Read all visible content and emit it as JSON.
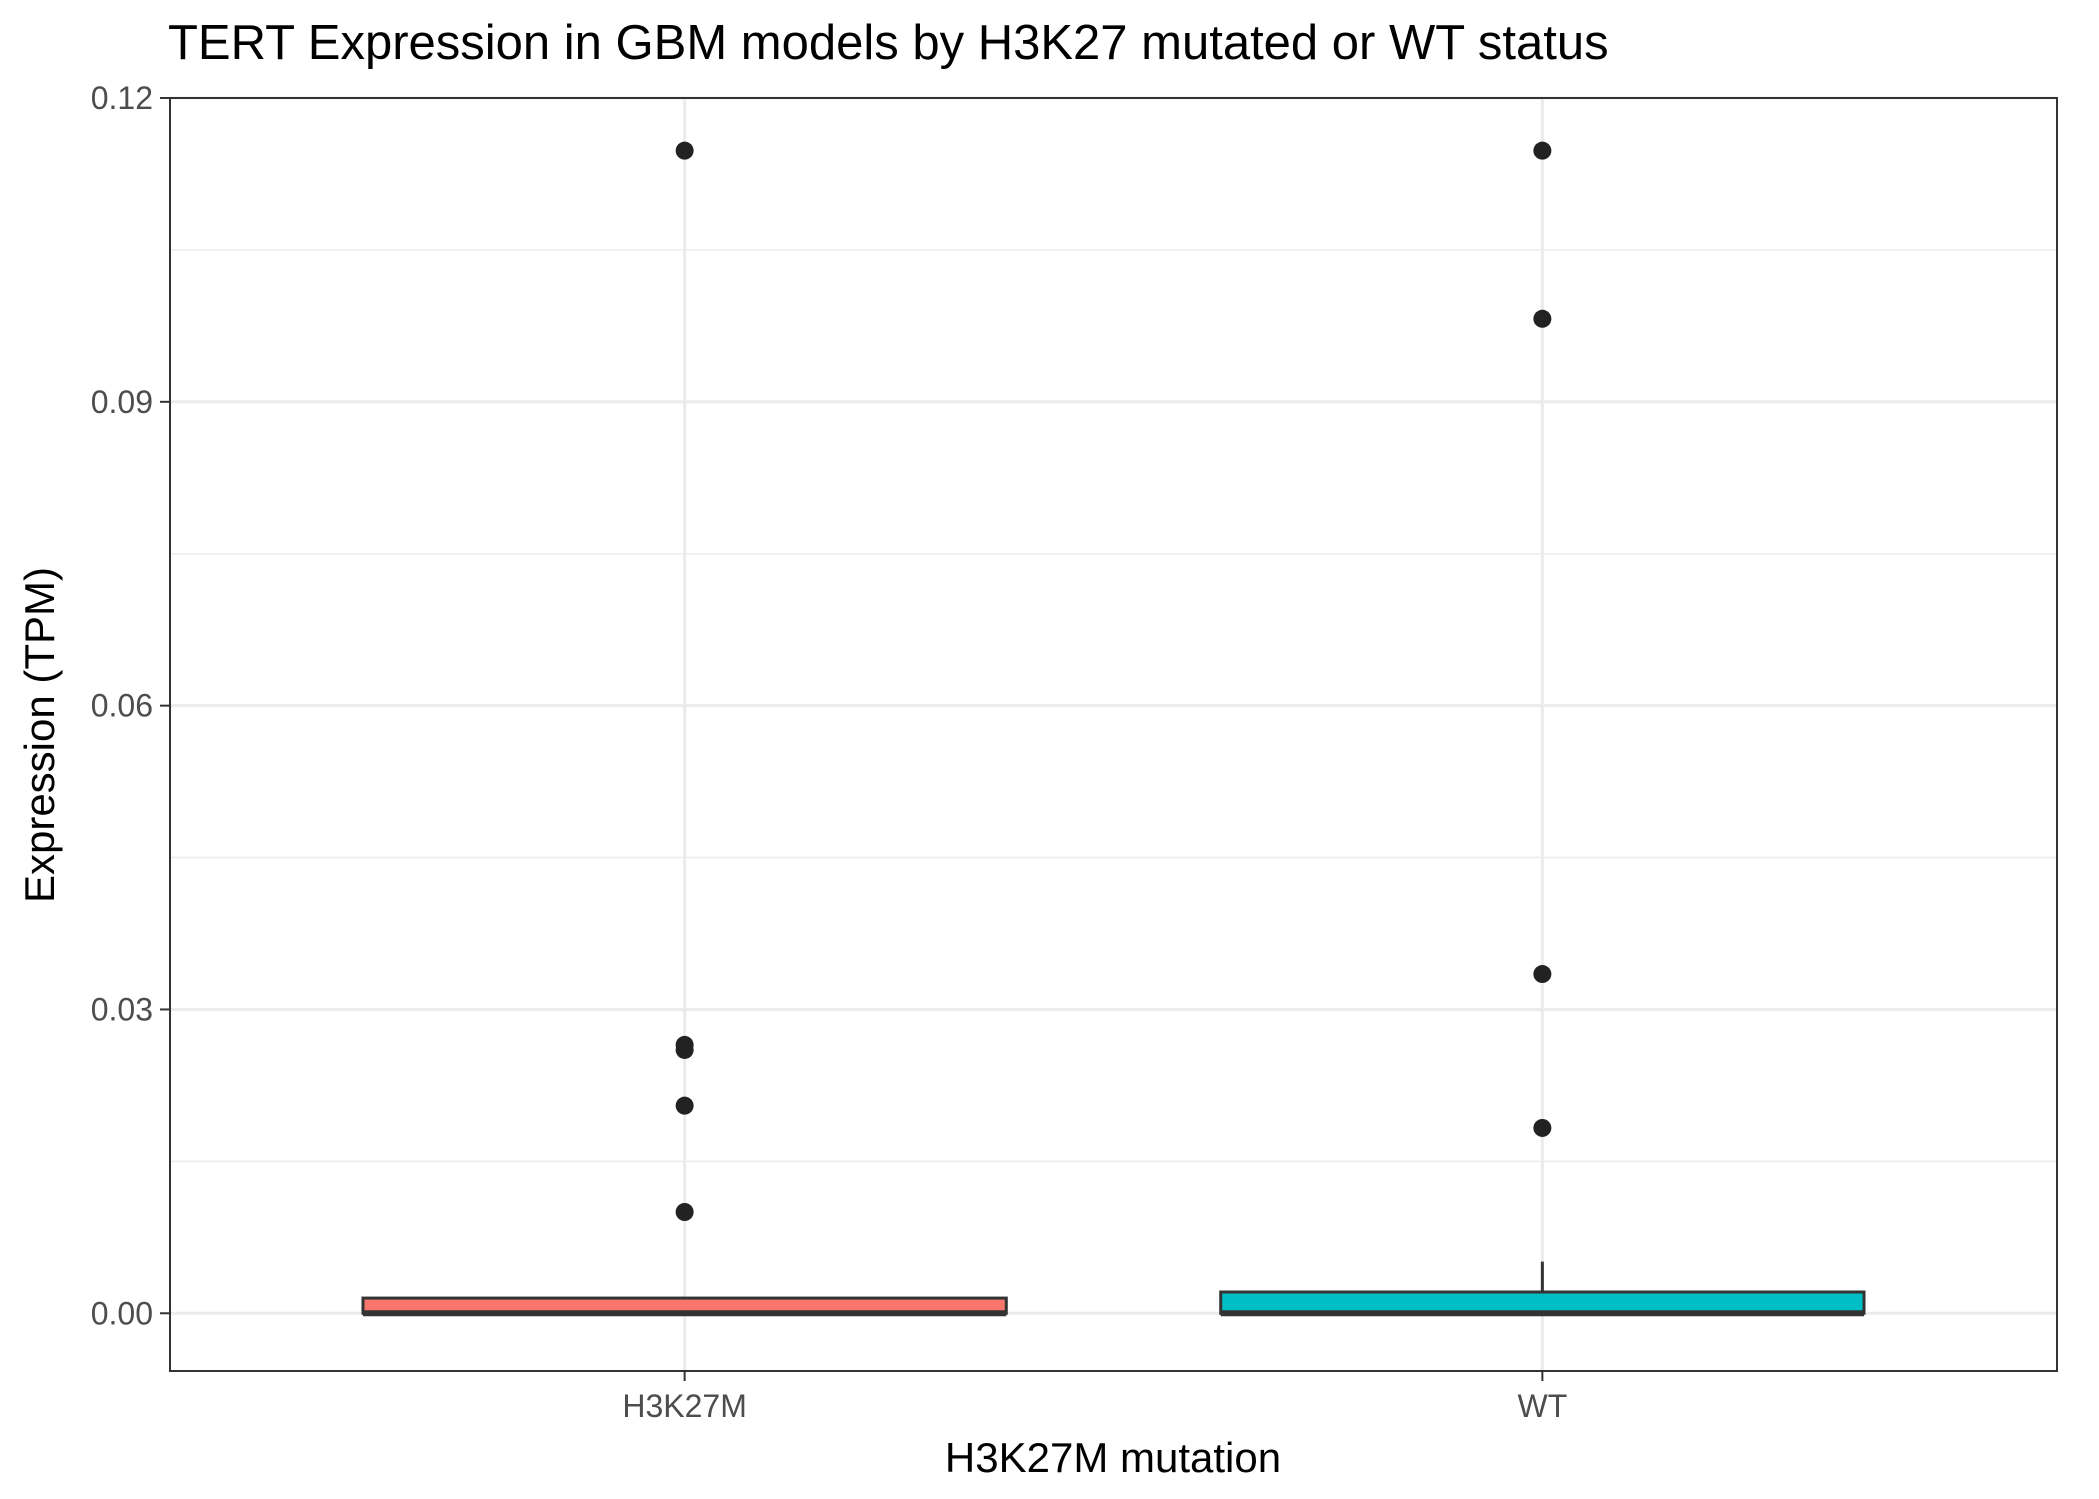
{
  "chart_data": {
    "type": "boxplot",
    "title": "TERT Expression in GBM models by H3K27 mutated or WT status",
    "xlabel": "H3K27M mutation",
    "ylabel": "Expression (TPM)",
    "categories": [
      "H3K27M",
      "WT"
    ],
    "ylim": [
      -0.0057,
      0.12
    ],
    "yticks": [
      0.0,
      0.03,
      0.06,
      0.09,
      0.12
    ],
    "ytick_labels": [
      "0.00",
      "0.03",
      "0.06",
      "0.09",
      "0.12"
    ],
    "grid": true,
    "legend": "none",
    "boxes": [
      {
        "category": "H3K27M",
        "color": "#F8766D",
        "min": 0.0,
        "q1": 0.0,
        "median": 0.0,
        "q3": 0.0015,
        "max": 0.0015,
        "outliers": [
          0.1148,
          0.0265,
          0.026,
          0.0205,
          0.01
        ]
      },
      {
        "category": "WT",
        "color": "#00BFC4",
        "min": 0.0,
        "q1": 0.0,
        "median": 0.0,
        "q3": 0.0021,
        "max": 0.0051,
        "outliers": [
          0.1148,
          0.0982,
          0.0335,
          0.0183
        ]
      }
    ]
  }
}
